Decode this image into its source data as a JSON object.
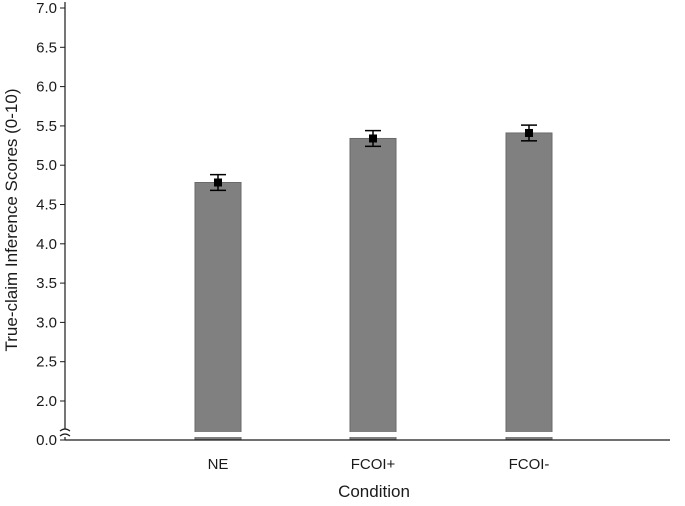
{
  "chart_data": {
    "type": "bar",
    "title": "",
    "xlabel": "Condition",
    "ylabel": "True-claim Inference Scores (0-10)",
    "categories": [
      "NE",
      "FCOI+",
      "FCOI-"
    ],
    "series": [
      {
        "values": [
          4.78,
          5.34,
          5.41
        ],
        "error": [
          0.1,
          0.1,
          0.1
        ]
      }
    ],
    "ylim": [
      0.0,
      7.0
    ],
    "y_axis_break": {
      "from": 0.0,
      "to": 1.5
    },
    "yticks": [
      "0.0",
      "2.0",
      "2.5",
      "3.0",
      "3.5",
      "4.0",
      "4.5",
      "5.0",
      "5.5",
      "6.0",
      "6.5",
      "7.0"
    ],
    "grid": false,
    "legend": "none",
    "colors": {
      "bar": "#808080",
      "bar_edge": "#6a6a6a",
      "axis": "#1a1a1a",
      "marker": "#000000"
    }
  }
}
